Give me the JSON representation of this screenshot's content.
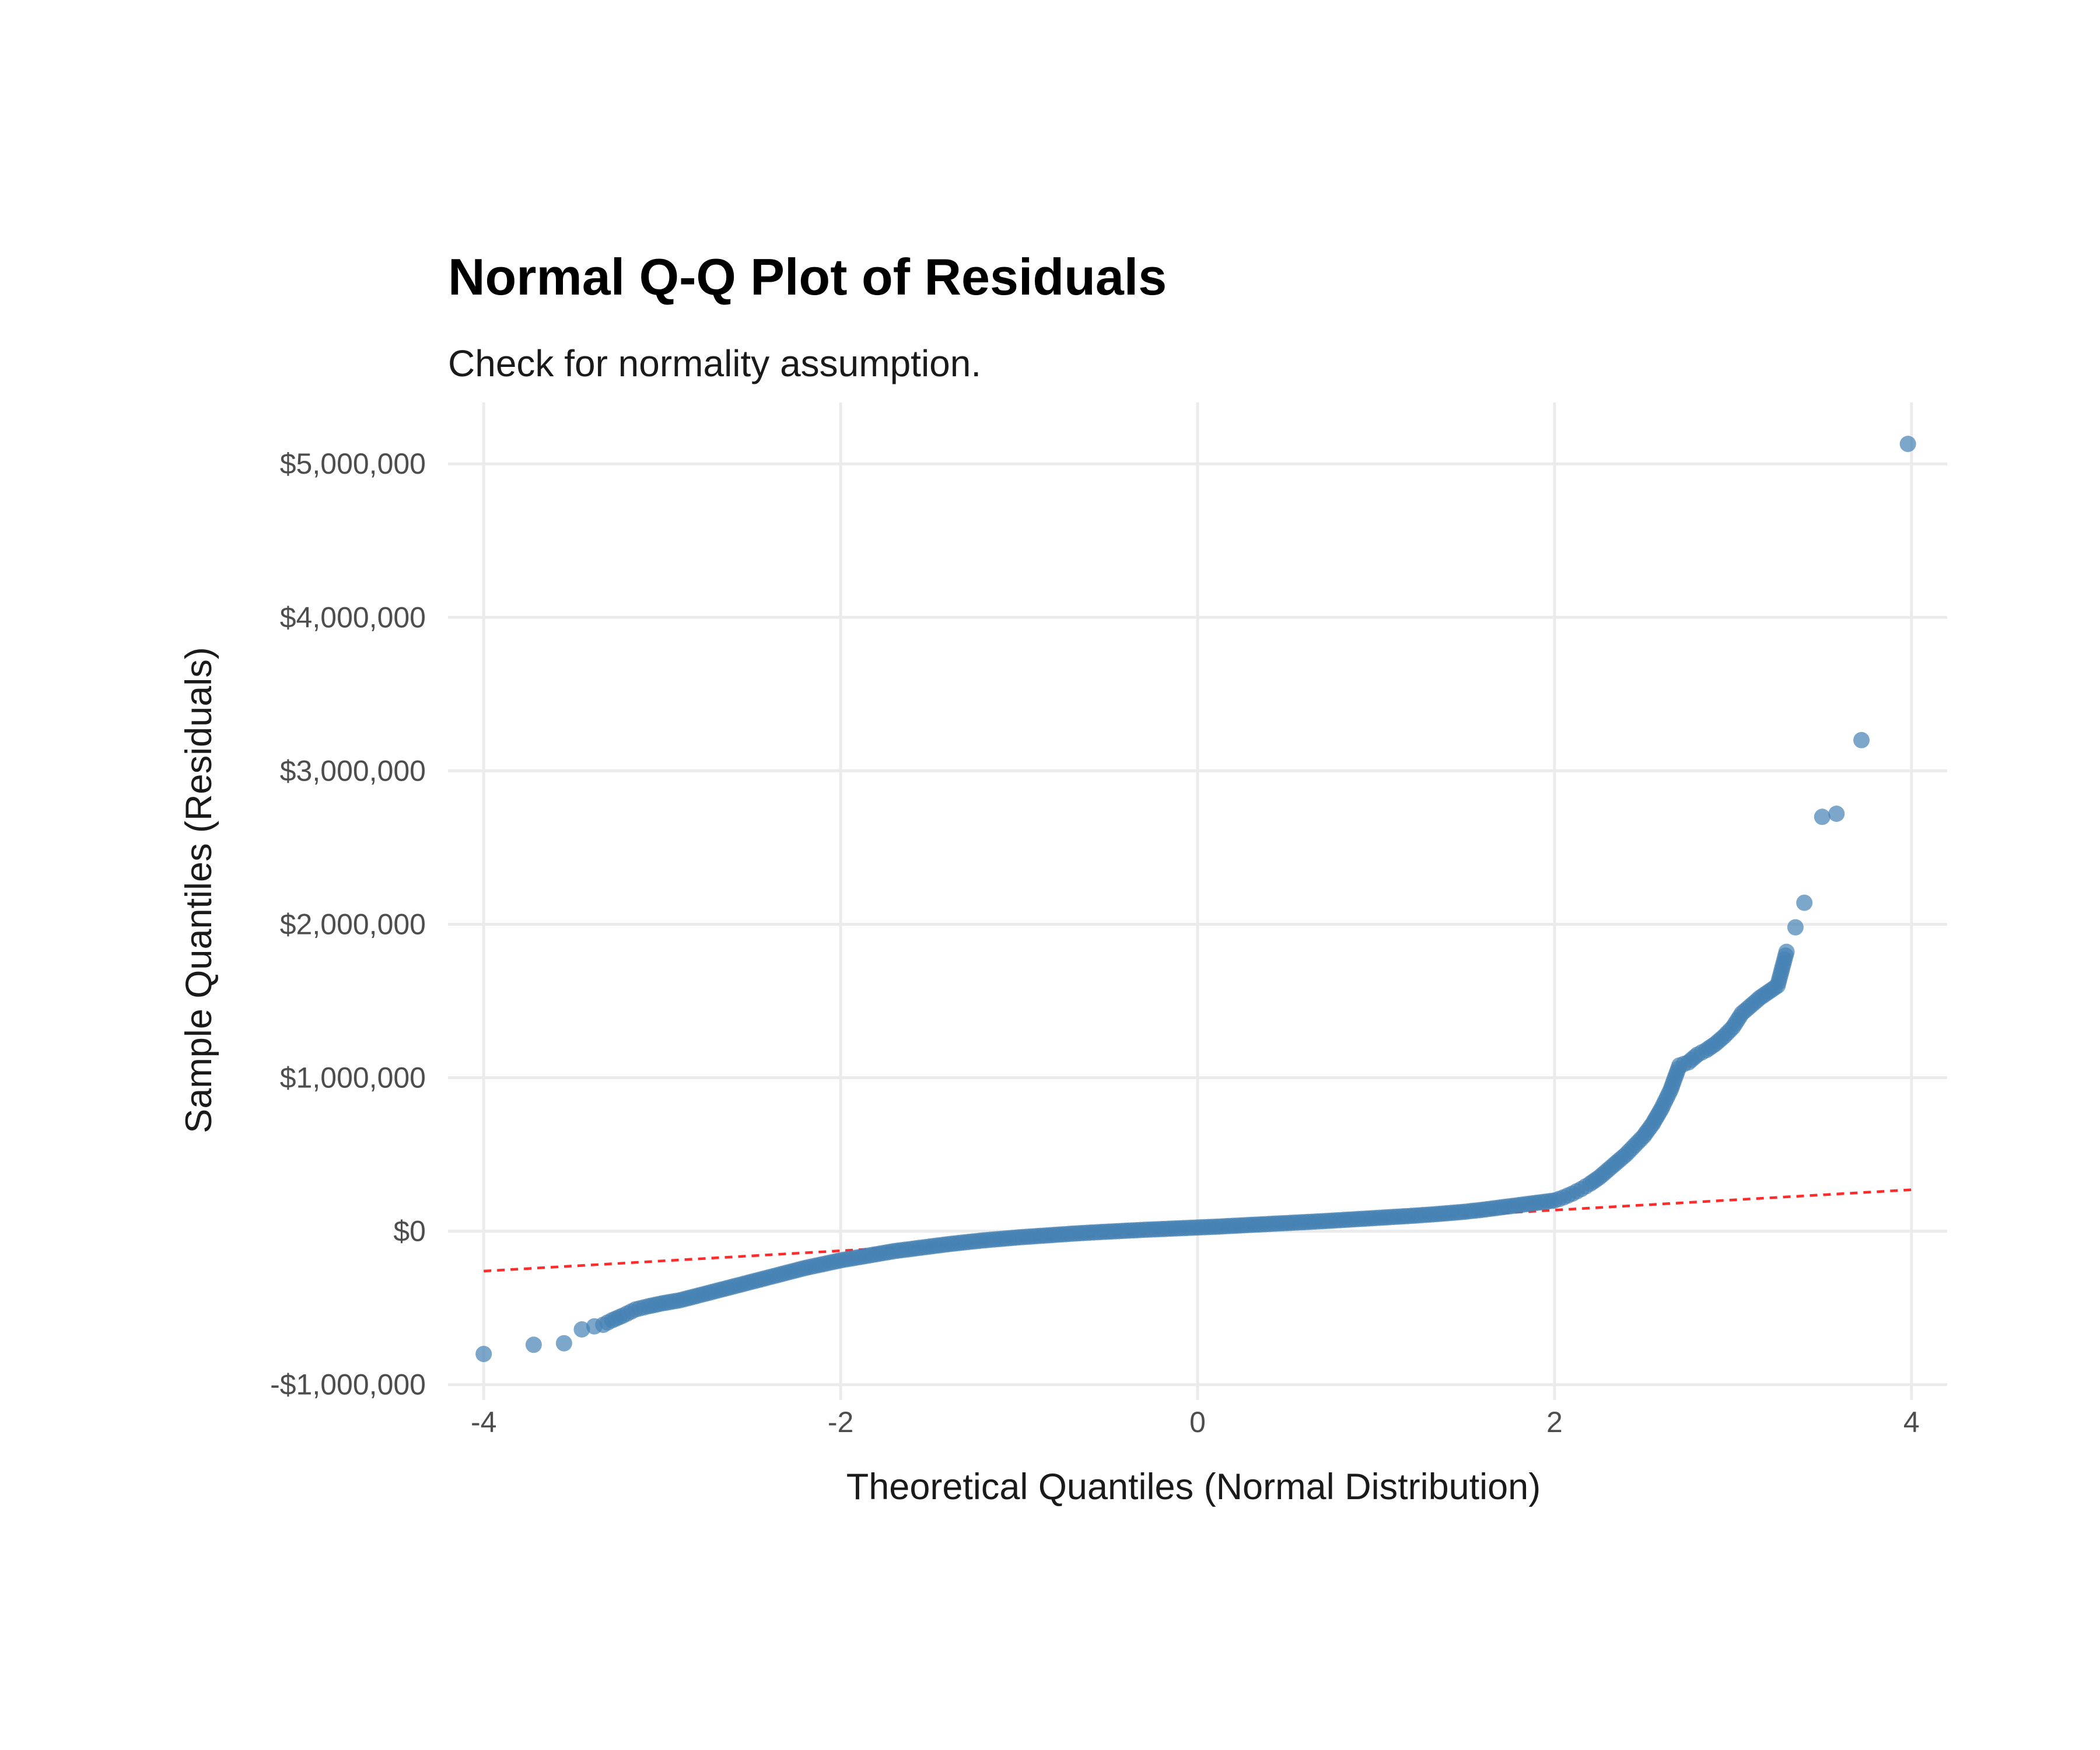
{
  "chart_data": {
    "type": "scatter",
    "title": "Normal Q-Q Plot of Residuals",
    "subtitle": "Check for normality assumption.",
    "xlabel": "Theoretical Quantiles (Normal Distribution)",
    "ylabel": "Sample Quantiles (Residuals)",
    "xlim": [
      -4.2,
      4.2
    ],
    "ylim": [
      -1100000,
      5400000
    ],
    "x_ticks": [
      -4,
      -2,
      0,
      2,
      4
    ],
    "x_tick_labels": [
      "-4",
      "-2",
      "0",
      "2",
      "4"
    ],
    "y_ticks": [
      -1000000,
      0,
      1000000,
      2000000,
      3000000,
      4000000,
      5000000
    ],
    "y_tick_labels": [
      "-$1,000,000",
      "$0",
      "$1,000,000",
      "$2,000,000",
      "$3,000,000",
      "$4,000,000",
      "$5,000,000"
    ],
    "grid": true,
    "legend": "none",
    "point_color": "#4682b4",
    "point_opacity": 0.7,
    "reference_line": {
      "style": "dashed",
      "color": "#ff0000",
      "x": [
        -4,
        4
      ],
      "y": [
        -260000,
        270000
      ]
    },
    "series": [
      {
        "x": [
          -4.0,
          -3.72,
          -3.55,
          -3.45,
          -3.38,
          -3.33,
          -3.28,
          -3.22,
          -3.15,
          -3.08,
          -3.0,
          -2.9,
          -2.8,
          -2.7,
          -2.6,
          -2.5,
          -2.4,
          -2.3,
          -2.2,
          -2.1,
          -2.0,
          -1.9,
          -1.8,
          -1.7,
          -1.6,
          -1.5,
          -1.4,
          -1.3,
          -1.2,
          -1.1,
          -1.0,
          -0.9,
          -0.8,
          -0.7,
          -0.6,
          -0.5,
          -0.4,
          -0.3,
          -0.2,
          -0.1,
          0.0,
          0.1,
          0.2,
          0.3,
          0.4,
          0.5,
          0.6,
          0.7,
          0.8,
          0.9,
          1.0,
          1.1,
          1.2,
          1.3,
          1.4,
          1.5,
          1.6,
          1.7,
          1.8,
          1.9,
          2.0,
          2.05,
          2.1,
          2.15,
          2.2,
          2.25,
          2.3,
          2.35,
          2.4,
          2.45,
          2.5,
          2.55,
          2.6,
          2.65,
          2.7,
          2.75,
          2.8,
          2.85,
          2.9,
          2.95,
          3.0,
          3.05,
          3.1,
          3.15,
          3.2,
          3.25,
          3.3,
          3.35,
          3.4,
          3.5,
          3.58,
          3.72,
          3.98
        ],
        "y": [
          -800000,
          -740000,
          -730000,
          -640000,
          -620000,
          -610000,
          -580000,
          -550000,
          -510000,
          -490000,
          -470000,
          -450000,
          -420000,
          -390000,
          -360000,
          -330000,
          -300000,
          -270000,
          -240000,
          -215000,
          -190000,
          -170000,
          -150000,
          -130000,
          -115000,
          -100000,
          -85000,
          -72000,
          -60000,
          -50000,
          -40000,
          -32000,
          -24000,
          -16000,
          -9000,
          -3000,
          3000,
          9000,
          14000,
          19000,
          24000,
          29000,
          35000,
          41000,
          47000,
          53000,
          59000,
          65000,
          72000,
          79000,
          86000,
          93000,
          100000,
          108000,
          117000,
          127000,
          140000,
          155000,
          170000,
          185000,
          200000,
          220000,
          245000,
          275000,
          310000,
          350000,
          400000,
          450000,
          500000,
          560000,
          620000,
          700000,
          800000,
          920000,
          1080000,
          1100000,
          1150000,
          1180000,
          1220000,
          1270000,
          1330000,
          1420000,
          1470000,
          1520000,
          1560000,
          1600000,
          1820000,
          1980000,
          2140000,
          2700000,
          2720000,
          3200000,
          5130000
        ]
      }
    ]
  }
}
